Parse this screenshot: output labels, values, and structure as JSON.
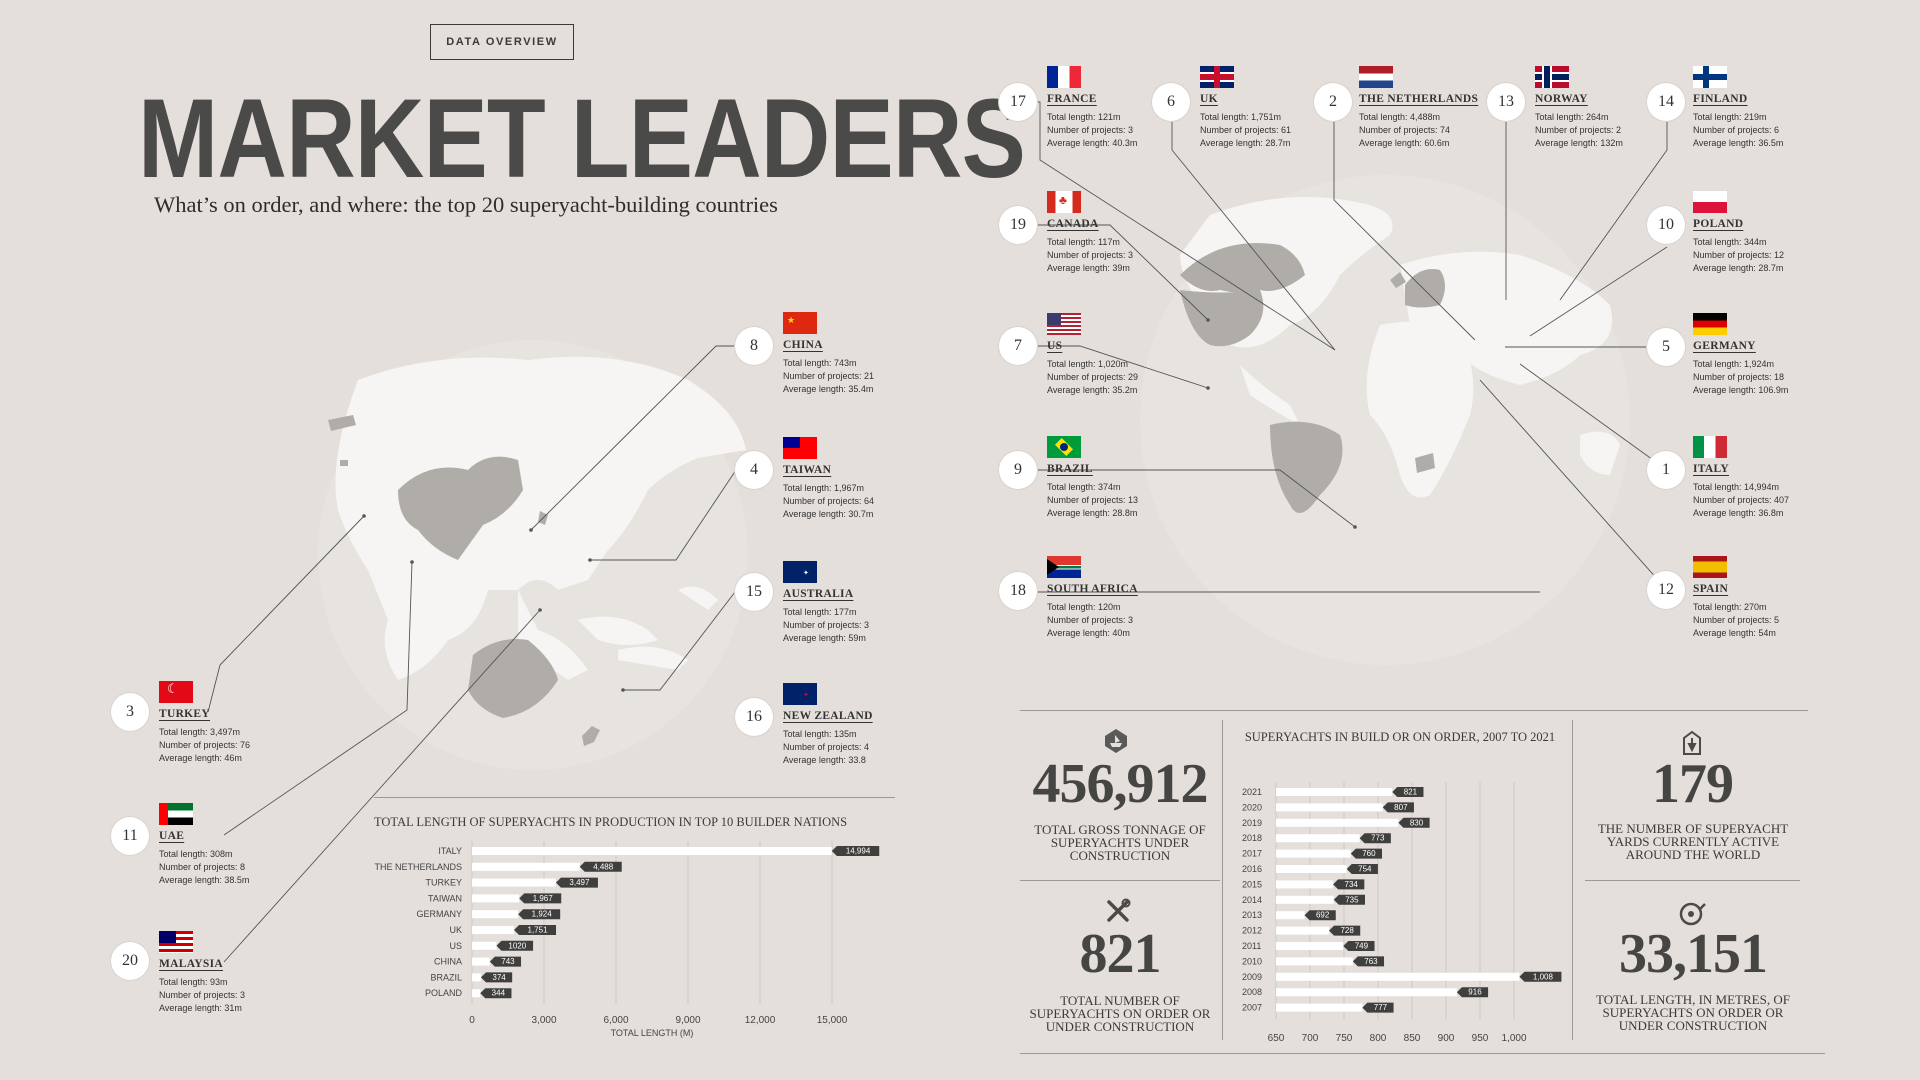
{
  "header": {
    "tag": "DATA OVERVIEW",
    "title": "MARKET LEADERS",
    "subtitle": "What’s on order, and where: the top 20 superyacht-building countries"
  },
  "colors": {
    "background": "#e4dfdb",
    "land": "#f6f5f3",
    "highlight": "#b0ada8",
    "bar": "#ffffff",
    "label": "#3a3a38"
  },
  "countries": [
    {
      "rank": "8",
      "name": "CHINA",
      "total": "Total length: 743m",
      "projects": "Number of projects: 21",
      "average": "Average length: 35.4m",
      "flag": "china"
    },
    {
      "rank": "4",
      "name": "TAIWAN",
      "total": "Total length: 1,967m",
      "projects": "Number of projects: 64",
      "average": "Average length: 30.7m",
      "flag": "taiwan"
    },
    {
      "rank": "15",
      "name": "AUSTRALIA",
      "total": "Total length: 177m",
      "projects": "Number of projects: 3",
      "average": "Average length: 59m",
      "flag": "australia"
    },
    {
      "rank": "16",
      "name": "NEW ZEALAND",
      "total": "Total length: 135m",
      "projects": "Number of projects: 4",
      "average": "Average length: 33.8",
      "flag": "newzealand"
    },
    {
      "rank": "3",
      "name": "TURKEY",
      "total": "Total length: 3,497m",
      "projects": "Number of projects: 76",
      "average": "Average length: 46m",
      "flag": "turkey"
    },
    {
      "rank": "11",
      "name": "UAE",
      "total": "Total length: 308m",
      "projects": "Number of projects: 8",
      "average": "Average length: 38.5m",
      "flag": "uae"
    },
    {
      "rank": "20",
      "name": "MALAYSIA",
      "total": "Total length: 93m",
      "projects": "Number of projects: 3",
      "average": "Average length: 31m",
      "flag": "malaysia"
    },
    {
      "rank": "17",
      "name": "FRANCE",
      "total": "Total length: 121m",
      "projects": "Number of projects: 3",
      "average": "Average length: 40.3m",
      "flag": "france"
    },
    {
      "rank": "6",
      "name": "UK",
      "total": "Total length: 1,751m",
      "projects": "Number of projects: 61",
      "average": "Average length: 28.7m",
      "flag": "uk"
    },
    {
      "rank": "2",
      "name": "THE NETHERLANDS",
      "total": "Total length: 4,488m",
      "projects": "Number of projects: 74",
      "average": "Average length: 60.6m",
      "flag": "netherlands"
    },
    {
      "rank": "13",
      "name": "NORWAY",
      "total": "Total length: 264m",
      "projects": "Number of projects: 2",
      "average": "Average length: 132m",
      "flag": "norway"
    },
    {
      "rank": "14",
      "name": "FINLAND",
      "total": "Total length: 219m",
      "projects": "Number of projects: 6",
      "average": "Average length: 36.5m",
      "flag": "finland"
    },
    {
      "rank": "19",
      "name": "CANADA",
      "total": "Total length: 117m",
      "projects": "Number of projects: 3",
      "average": "Average length: 39m",
      "flag": "canada"
    },
    {
      "rank": "10",
      "name": "POLAND",
      "total": "Total length: 344m",
      "projects": "Number of projects: 12",
      "average": "Average length: 28.7m",
      "flag": "poland"
    },
    {
      "rank": "7",
      "name": "US",
      "total": "Total length: 1,020m",
      "projects": "Number of projects: 29",
      "average": "Average length: 35.2m",
      "flag": "us"
    },
    {
      "rank": "5",
      "name": "GERMANY",
      "total": "Total length: 1,924m",
      "projects": "Number of projects: 18",
      "average": "Average length: 106.9m",
      "flag": "germany"
    },
    {
      "rank": "9",
      "name": "BRAZIL",
      "total": "Total length: 374m",
      "projects": "Number of projects: 13",
      "average": "Average length: 28.8m",
      "flag": "brazil"
    },
    {
      "rank": "1",
      "name": "ITALY",
      "total": "Total length: 14,994m",
      "projects": "Number of projects: 407",
      "average": "Average length: 36.8m",
      "flag": "italy"
    },
    {
      "rank": "18",
      "name": "SOUTH AFRICA",
      "total": "Total length: 120m",
      "projects": "Number of projects: 3",
      "average": "Average length: 40m",
      "flag": "southafrica"
    },
    {
      "rank": "12",
      "name": "SPAIN",
      "total": "Total length: 270m",
      "projects": "Number of projects: 5",
      "average": "Average length: 54m",
      "flag": "spain"
    }
  ],
  "stats": {
    "tonnage": {
      "value": "456,912",
      "label": "TOTAL GROSS TONNAGE OF SUPERYACHTS UNDER CONSTRUCTION",
      "icon": "ship-icon"
    },
    "orders": {
      "value": "821",
      "label": "TOTAL NUMBER OF SUPERYACHTS ON ORDER OR UNDER CONSTRUCTION",
      "icon": "tools-icon"
    },
    "yards": {
      "value": "179",
      "label": "THE NUMBER OF SUPERYACHT YARDS CURRENTLY ACTIVE AROUND THE WORLD",
      "icon": "shipyard-icon"
    },
    "length": {
      "value": "33,151",
      "label": "TOTAL LENGTH, IN METRES, OF SUPERYACHTS ON ORDER OR UNDER CONSTRUCTION",
      "icon": "tape-measure-icon"
    }
  },
  "chart_data": [
    {
      "type": "bar",
      "orientation": "horizontal",
      "title": "TOTAL LENGTH OF SUPERYACHTS IN PRODUCTION IN TOP 10 BUILDER NATIONS",
      "xlabel": "TOTAL LENGTH (M)",
      "ylabel": "",
      "categories": [
        "ITALY",
        "THE NETHERLANDS",
        "TURKEY",
        "TAIWAN",
        "GERMANY",
        "UK",
        "US",
        "CHINA",
        "BRAZIL",
        "POLAND"
      ],
      "values": [
        14994,
        4488,
        3497,
        1967,
        1924,
        1751,
        1020,
        743,
        374,
        344
      ],
      "value_labels": [
        "14,994",
        "4,488",
        "3,497",
        "1,967",
        "1,924",
        "1,751",
        "1020",
        "743",
        "374",
        "344"
      ],
      "xlim": [
        0,
        15000
      ],
      "xticks": [
        0,
        3000,
        6000,
        9000,
        12000,
        15000
      ],
      "xtick_labels": [
        "0",
        "3,000",
        "6,000",
        "9,000",
        "12,000",
        "15,000"
      ],
      "grid": true
    },
    {
      "type": "bar",
      "orientation": "horizontal",
      "title": "SUPERYACHTS IN BUILD OR ON ORDER, 2007 TO 2021",
      "xlabel": "",
      "ylabel": "",
      "categories": [
        "2021",
        "2020",
        "2019",
        "2018",
        "2017",
        "2016",
        "2015",
        "2014",
        "2013",
        "2012",
        "2011",
        "2010",
        "2009",
        "2008",
        "2007"
      ],
      "values": [
        821,
        807,
        830,
        773,
        760,
        754,
        734,
        735,
        692,
        728,
        749,
        763,
        1008,
        916,
        777
      ],
      "value_labels": [
        "821",
        "807",
        "830",
        "773",
        "760",
        "754",
        "734",
        "735",
        "692",
        "728",
        "749",
        "763",
        "1,008",
        "916",
        "777"
      ],
      "xlim": [
        650,
        1000
      ],
      "xticks": [
        650,
        700,
        750,
        800,
        850,
        900,
        950,
        1000
      ],
      "xtick_labels": [
        "650",
        "700",
        "750",
        "800",
        "850",
        "900",
        "950",
        "1,000"
      ],
      "grid": true
    }
  ]
}
